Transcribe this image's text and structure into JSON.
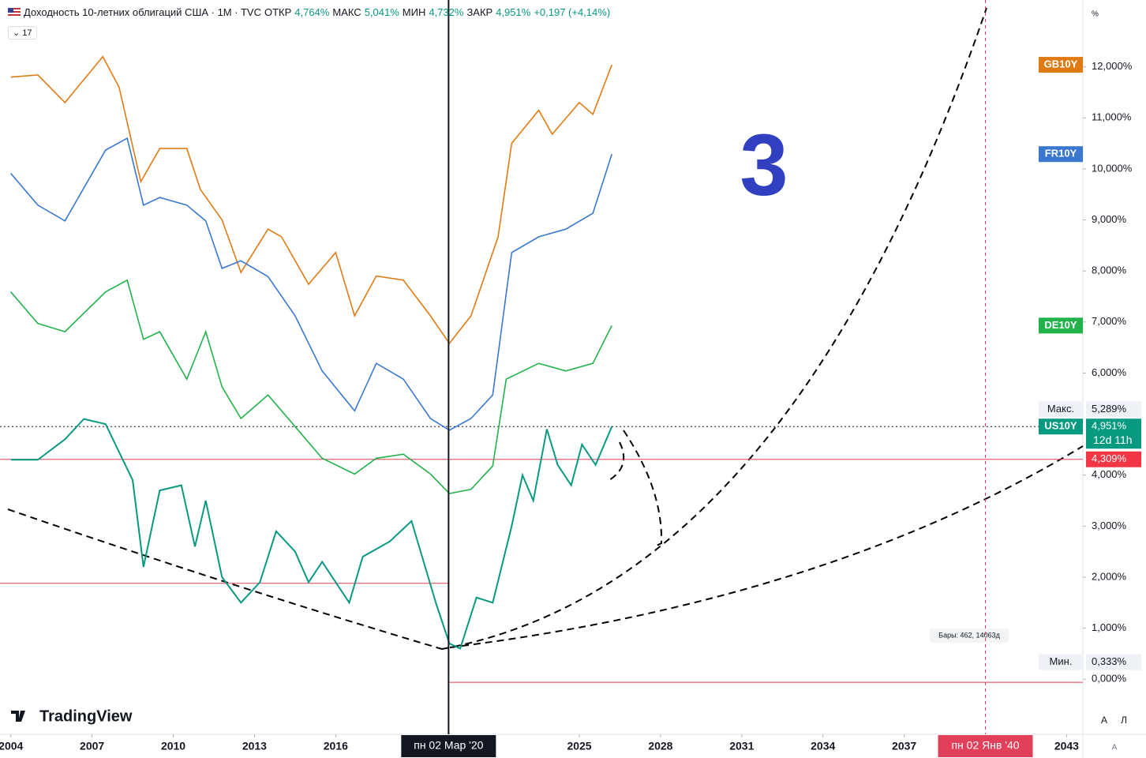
{
  "chart_data": {
    "type": "line",
    "title": "Доходность 10-летних облигаций США · 1M · TVC",
    "ohlc": [
      {
        "label": "ОТКР",
        "value": "4,764%"
      },
      {
        "label": "МАКС",
        "value": "5,041%"
      },
      {
        "label": "МИН",
        "value": "4,732%"
      },
      {
        "label": "ЗАКР",
        "value": "4,951%"
      }
    ],
    "change": "+0,197 (+4,14%)",
    "indicator_count": "17",
    "xlim": [
      2003.6,
      2043.6
    ],
    "ylim": [
      -1.08,
      13.31
    ],
    "xticks": [
      {
        "value": 2004,
        "label": "2004"
      },
      {
        "value": 2007,
        "label": "2007"
      },
      {
        "value": 2010,
        "label": "2010"
      },
      {
        "value": 2013,
        "label": "2013"
      },
      {
        "value": 2016,
        "label": "2016"
      },
      {
        "value": 2025,
        "label": "2025"
      },
      {
        "value": 2028,
        "label": "2028"
      },
      {
        "value": 2031,
        "label": "2031"
      },
      {
        "value": 2034,
        "label": "2034"
      },
      {
        "value": 2037,
        "label": "2037"
      },
      {
        "value": 2043,
        "label": "2043"
      }
    ],
    "yticks": [
      {
        "value": 0,
        "label": "0,000%"
      },
      {
        "value": 1,
        "label": "1,000%"
      },
      {
        "value": 2,
        "label": "2,000%"
      },
      {
        "value": 3,
        "label": "3,000%"
      },
      {
        "value": 4,
        "label": "4,000%"
      },
      {
        "value": 6,
        "label": "6,000%"
      },
      {
        "value": 7,
        "label": "7,000%"
      },
      {
        "value": 8,
        "label": "8,000%"
      },
      {
        "value": 9,
        "label": "9,000%"
      },
      {
        "value": 10,
        "label": "10,000%"
      },
      {
        "value": 11,
        "label": "11,000%"
      },
      {
        "value": 12,
        "label": "12,000%"
      }
    ],
    "axis_unit": "%",
    "series": [
      {
        "name": "GB10Y",
        "color": "#e07b14",
        "x": [
          2004,
          2005,
          2006,
          2007.4,
          2008,
          2008.8,
          2009.5,
          2010.5,
          2011,
          2011.8,
          2012.5,
          2013.5,
          2014,
          2015,
          2016,
          2016.7,
          2017.5,
          2018.5,
          2019.5,
          2020.2,
          2021,
          2022,
          2022.5,
          2023.5,
          2024,
          2025,
          2025.5,
          2026.2
        ],
        "values": [
          11.8,
          11.84,
          11.3,
          12.2,
          11.6,
          9.75,
          10.4,
          10.4,
          9.6,
          9.0,
          7.97,
          8.82,
          8.67,
          7.74,
          8.36,
          7.12,
          7.9,
          7.82,
          7.12,
          6.58,
          7.12,
          8.67,
          10.5,
          11.15,
          10.68,
          11.3,
          11.07,
          12.04
        ]
      },
      {
        "name": "FR10Y",
        "color": "#3a78d0",
        "x": [
          2004,
          2005,
          2006,
          2007.5,
          2008.3,
          2008.9,
          2009.5,
          2010.5,
          2011.2,
          2011.8,
          2012.5,
          2013.5,
          2014.5,
          2015.5,
          2016.7,
          2017.5,
          2018.5,
          2019.5,
          2020.2,
          2021,
          2021.8,
          2022.5,
          2023.5,
          2024.5,
          2025.5,
          2026.2
        ],
        "values": [
          9.91,
          9.29,
          8.98,
          10.37,
          10.6,
          9.29,
          9.44,
          9.29,
          8.98,
          8.05,
          8.2,
          7.89,
          7.12,
          6.04,
          5.26,
          6.19,
          5.88,
          5.11,
          4.88,
          5.11,
          5.57,
          8.36,
          8.67,
          8.82,
          9.13,
          10.29
        ]
      },
      {
        "name": "DE10Y",
        "color": "#22b24c",
        "x": [
          2004,
          2005,
          2006,
          2007.5,
          2008.3,
          2008.9,
          2009.5,
          2010.5,
          2011.2,
          2011.8,
          2012.5,
          2013.5,
          2014.5,
          2015.5,
          2016.7,
          2017.5,
          2018.5,
          2019.5,
          2020.2,
          2021,
          2021.8,
          2022.3,
          2023.5,
          2024.5,
          2025.5,
          2026.2
        ],
        "values": [
          7.59,
          6.97,
          6.81,
          7.59,
          7.82,
          6.66,
          6.81,
          5.88,
          6.81,
          5.73,
          5.11,
          5.57,
          4.95,
          4.33,
          4.02,
          4.33,
          4.41,
          4.02,
          3.64,
          3.72,
          4.18,
          5.88,
          6.19,
          6.04,
          6.19,
          6.93
        ]
      },
      {
        "name": "US10Y",
        "color": "#089981",
        "x": [
          2004,
          2005,
          2006,
          2006.7,
          2007.5,
          2008.5,
          2008.9,
          2009.5,
          2010.3,
          2010.8,
          2011.2,
          2011.8,
          2012.5,
          2013.2,
          2013.8,
          2014.5,
          2015,
          2015.5,
          2016.5,
          2017,
          2018,
          2018.8,
          2019.7,
          2020.2,
          2020.6,
          2021.2,
          2021.8,
          2022.5,
          2022.9,
          2023.3,
          2023.8,
          2024.2,
          2024.7,
          2025.1,
          2025.6,
          2026.2
        ],
        "values": [
          4.3,
          4.3,
          4.7,
          5.1,
          5.0,
          3.9,
          2.2,
          3.7,
          3.8,
          2.6,
          3.5,
          2.0,
          1.5,
          1.9,
          2.9,
          2.5,
          1.9,
          2.3,
          1.5,
          2.4,
          2.7,
          3.1,
          1.5,
          0.7,
          0.6,
          1.6,
          1.5,
          3.0,
          4.0,
          3.5,
          4.9,
          4.2,
          3.8,
          4.6,
          4.2,
          4.951
        ]
      }
    ],
    "last_price": {
      "value": 4.951,
      "label": "4,951%",
      "countdown": "12d 11h"
    },
    "max": {
      "name": "Макс.",
      "value": 5.289,
      "label": "5,289%"
    },
    "min": {
      "name": "Мин.",
      "value": 0.333,
      "label": "0,333%"
    },
    "level": {
      "value": 4.309,
      "label": "4,309%"
    },
    "lines": [
      {
        "value": 1.88,
        "x": [
          2003.6,
          2020.17
        ]
      },
      {
        "value": -0.06,
        "x": [
          2020.17,
          2043.6
        ]
      }
    ],
    "crosshair": {
      "x": 2020.17,
      "label": "пн 02 Мар '20"
    },
    "marker": {
      "x": 2040.0,
      "label": "пн 02 Янв '40"
    },
    "annotation": "3",
    "bars_note": "Бары: 462, 14063д",
    "brand": "TradingView",
    "buttons": [
      "A",
      "Л"
    ],
    "corner": "A"
  }
}
